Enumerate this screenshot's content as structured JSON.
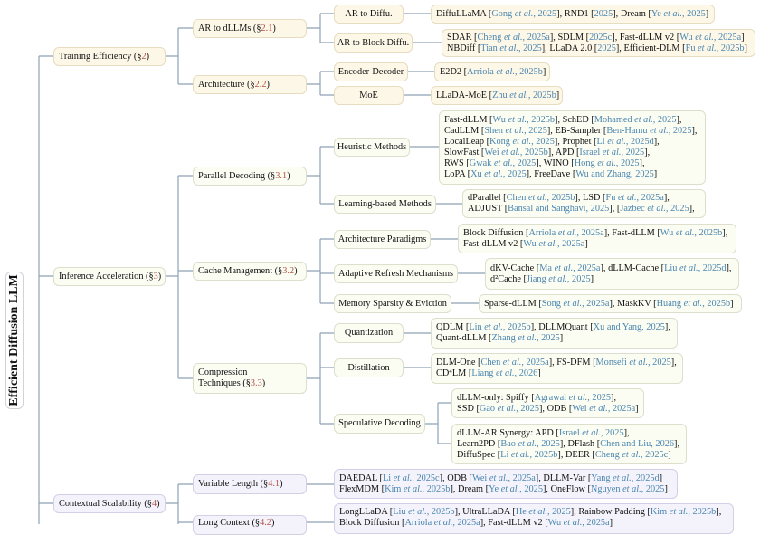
{
  "root": {
    "title": "Efficient Diffusion LLM"
  },
  "colors": {
    "training": "#fdf7e8",
    "inference": "#fbfcf2",
    "contextual": "#f4f3fb",
    "citation": "#4a86b0",
    "section": "#b4524a",
    "connector": "#8ea2b5"
  },
  "level1": {
    "training": {
      "label": "Training Efficiency (§",
      "sec": "2",
      "end": ")"
    },
    "inference": {
      "label": "Inference Acceleration (§",
      "sec": "3",
      "end": ")"
    },
    "contextual": {
      "label": "Contextual Scalability (§",
      "sec": "4",
      "end": ")"
    }
  },
  "level2": {
    "ar_dllm": {
      "label": "AR to dLLMs (§",
      "sec": "2.1",
      "end": ")"
    },
    "architecture": {
      "label": "Architecture (§",
      "sec": "2.2",
      "end": ")"
    },
    "parallel": {
      "label": "Parallel Decoding (§",
      "sec": "3.1",
      "end": ")"
    },
    "cache": {
      "label": "Cache Management (§",
      "sec": "3.2",
      "end": ")"
    },
    "compression": {
      "label1": "Compression",
      "label": "Techniques (§",
      "sec": "3.3",
      "end": ")"
    },
    "variable": {
      "label": "Variable Length (§",
      "sec": "4.1",
      "end": ")"
    },
    "long": {
      "label": "Long Context (§",
      "sec": "4.2",
      "end": ")"
    }
  },
  "level3": {
    "ar_diffu": "AR to Diffu.",
    "ar_block": "AR to Block Diffu.",
    "enc_dec": "Encoder-Decoder",
    "moe": "MoE",
    "heuristic": "Heuristic Methods",
    "learning": "Learning-based Methods",
    "arch_paradigms": "Architecture Paradigms",
    "adaptive": "Adaptive Refresh Mechanisms",
    "memory": "Memory Sparsity & Eviction",
    "quant": "Quantization",
    "distill": "Distillation",
    "spec": "Speculative Decoding"
  },
  "leaves": {
    "ar_diffu": [
      [
        {
          "n": "DiffuLLaMA",
          "c": "Gong et al., 2025"
        },
        {
          "n": "RND1",
          "c": "2025"
        },
        {
          "n": "Dream",
          "c": "Ye et al., 2025"
        }
      ]
    ],
    "ar_block": [
      [
        {
          "n": "SDAR",
          "c": "Cheng et al., 2025a"
        },
        {
          "n": "SDLM",
          "c": "2025c"
        },
        {
          "n": "Fast-dLLM v2",
          "c": "Wu et al., 2025a"
        }
      ],
      [
        {
          "n": "NBDiff",
          "c": "Tian et al., 2025"
        },
        {
          "n": "LLaDA 2.0",
          "c": "2025"
        },
        {
          "n": "Efficient-DLM",
          "c": "Fu et al., 2025b"
        }
      ]
    ],
    "enc_dec": [
      [
        {
          "n": "E2D2",
          "c": "Arriola et al., 2025b"
        }
      ]
    ],
    "moe": [
      [
        {
          "n": "LLaDA-MoE",
          "c": "Zhu et al., 2025b"
        }
      ]
    ],
    "heuristic": [
      [
        {
          "n": "Fast-dLLM",
          "c": "Wu et al., 2025b"
        },
        {
          "n": "SchED",
          "c": "Mohamed et al., 2025"
        },
        {
          "end": ","
        }
      ],
      [
        {
          "n": "CadLLM",
          "c": "Shen et al., 2025"
        },
        {
          "n": "EB-Sampler",
          "c": "Ben-Hamu et al., 2025"
        },
        {
          "end": ","
        }
      ],
      [
        {
          "n": "LocalLeap",
          "c": "Kong et al., 2025"
        },
        {
          "n": "Prophet",
          "c": "Li et al., 2025d"
        },
        {
          "end": ","
        }
      ],
      [
        {
          "n": "SlowFast",
          "c": "Wei et al., 2025b"
        },
        {
          "n": "APD",
          "c": "Israel et al., 2025"
        },
        {
          "end": ","
        }
      ],
      [
        {
          "n": "RWS",
          "c": "Gwak et al., 2025"
        },
        {
          "n": "WINO",
          "c": "Hong et al., 2025"
        },
        {
          "end": ","
        }
      ],
      [
        {
          "n": "LoPA",
          "c": "Xu et al., 2025"
        },
        {
          "n": "FreeDave",
          "c": "Wu and Zhang, 2025"
        }
      ]
    ],
    "learning": [
      [
        {
          "n": "dParallel",
          "c": "Chen et al., 2025b"
        },
        {
          "n": "LSD",
          "c": "Fu et al., 2025a"
        },
        {
          "end": ","
        }
      ],
      [
        {
          "n": "ADJUST",
          "c": "Bansal and Sanghavi, 2025"
        },
        {
          "n": "",
          "c": "Jazbec et al., 2025"
        },
        {
          "end": ","
        }
      ]
    ],
    "arch_paradigms": [
      [
        {
          "n": "Block Diffusion",
          "c": "Arriola et al., 2025a"
        },
        {
          "n": "Fast-dLLM",
          "c": "Wu et al., 2025b"
        },
        {
          "end": ","
        }
      ],
      [
        {
          "n": "Fast-dLLM v2",
          "c": "Wu et al., 2025a"
        }
      ]
    ],
    "adaptive": [
      [
        {
          "n": "dKV-Cache",
          "c": "Ma et al., 2025a"
        },
        {
          "n": "dLLM-Cache",
          "c": "Liu et al., 2025d"
        },
        {
          "end": ","
        }
      ],
      [
        {
          "n": "d²Cache",
          "c": "Jiang et al., 2025"
        }
      ]
    ],
    "memory": [
      [
        {
          "n": "Sparse-dLLM",
          "c": "Song et al., 2025a"
        },
        {
          "n": "MaskKV",
          "c": "Huang et al., 2025b"
        }
      ]
    ],
    "quant": [
      [
        {
          "n": "QDLM",
          "c": "Lin et al., 2025b"
        },
        {
          "n": "DLLMQuant",
          "c": "Xu and Yang, 2025"
        },
        {
          "end": ","
        }
      ],
      [
        {
          "n": "Quant-dLLM",
          "c": "Zhang et al., 2025"
        }
      ]
    ],
    "distill": [
      [
        {
          "n": "DLM-One",
          "c": "Chen et al., 2025a"
        },
        {
          "n": "FS-DFM",
          "c": "Monsefi et al., 2025"
        },
        {
          "end": ","
        }
      ],
      [
        {
          "n": "CD⁴LM",
          "c": "Liang et al., 2026"
        }
      ]
    ],
    "spec_only": [
      [
        {
          "n": "dLLM-only: Spiffy",
          "c": "Agrawal et al., 2025"
        },
        {
          "end": ","
        }
      ],
      [
        {
          "n": "SSD",
          "c": "Gao et al., 2025"
        },
        {
          "n": "ODB",
          "c": "Wei et al., 2025a"
        }
      ]
    ],
    "spec_ar": [
      [
        {
          "n": "dLLM-AR Synergy: APD",
          "c": "Israel et al., 2025"
        },
        {
          "end": ","
        }
      ],
      [
        {
          "n": "Learn2PD",
          "c": "Bao et al., 2025"
        },
        {
          "n": "DFlash",
          "c": "Chen and Liu, 2026"
        },
        {
          "end": ","
        }
      ],
      [
        {
          "n": "DiffuSpec",
          "c": "Li et al., 2025b"
        },
        {
          "n": "DEER",
          "c": "Cheng et al., 2025c"
        }
      ]
    ],
    "variable": [
      [
        {
          "n": "DAEDAL",
          "c": "Li et al., 2025c"
        },
        {
          "n": "ODB",
          "c": "Wei et al., 2025a"
        },
        {
          "n": "DLLM-Var",
          "c": "Yang et al., 2025d"
        }
      ],
      [
        {
          "n": "FlexMDM",
          "c": "Kim et al., 2025b"
        },
        {
          "n": "Dream",
          "c": "Ye et al., 2025"
        },
        {
          "n": "OneFlow",
          "c": "Nguyen et al., 2025"
        }
      ]
    ],
    "long": [
      [
        {
          "n": "LongLLaDA",
          "c": "Liu et al., 2025b"
        },
        {
          "n": "UltraLLaDA",
          "c": "He et al., 2025"
        },
        {
          "n": "Rainbow Padding",
          "c": "Kim et al., 2025b"
        },
        {
          "end": ","
        }
      ],
      [
        {
          "n": "Block Diffusion",
          "c": "Arriola et al., 2025a"
        },
        {
          "n": "Fast-dLLM v2",
          "c": "Wu et al., 2025a"
        }
      ]
    ]
  }
}
